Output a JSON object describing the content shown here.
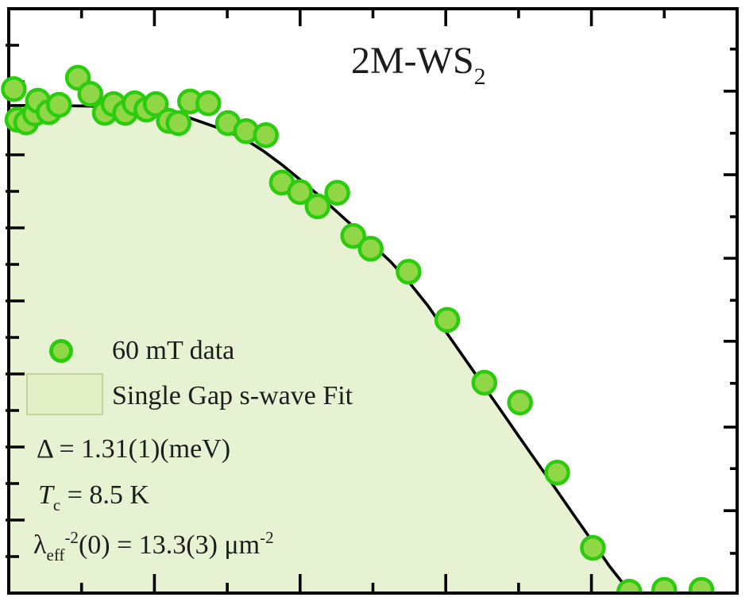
{
  "title": {
    "main": "2M-WS",
    "subscript": "2"
  },
  "legend": {
    "items": [
      {
        "label": "60 mT data",
        "marker": "circle-marker"
      },
      {
        "label": "Single Gap s-wave Fit",
        "marker": "area-swatch"
      }
    ]
  },
  "annotations": {
    "gap": {
      "text": "Δ = 1.31(1)(meV)"
    },
    "tc": {
      "symbol": "T",
      "subscript": "c",
      "rest": " = 8.5 K"
    },
    "lambda": {
      "symbol": "λ",
      "subscript": "eff",
      "superscript": "-2",
      "middle": "(0) = 13.3(3) μm",
      "superscript2": "-2"
    }
  },
  "colors": {
    "marker_fill": "#90d747",
    "marker_stroke": "#2bcb0e",
    "area_fill": "#e7f2d2",
    "swatch_fill": "#e3f0c6",
    "swatch_border": "#bed69c",
    "curve": "#000000",
    "frame": "#000000",
    "text": "#1c1c1c",
    "background": "#ffffff"
  },
  "chart_data": {
    "type": "scatter",
    "title": "2M-WS2",
    "xlabel": "",
    "ylabel": "",
    "xlim": [
      0,
      10
    ],
    "ylim": [
      0,
      16
    ],
    "grid": false,
    "legend_position": "middle-left",
    "series": [
      {
        "name": "60 mT data",
        "kind": "scatter",
        "marker_radius_px": 14,
        "points": [
          [
            0.07,
            13.8
          ],
          [
            0.12,
            12.96
          ],
          [
            0.24,
            12.89
          ],
          [
            0.36,
            13.13
          ],
          [
            0.4,
            13.48
          ],
          [
            0.55,
            13.17
          ],
          [
            0.69,
            13.37
          ],
          [
            0.95,
            14.11
          ],
          [
            1.12,
            13.67
          ],
          [
            1.32,
            13.15
          ],
          [
            1.44,
            13.39
          ],
          [
            1.6,
            13.15
          ],
          [
            1.73,
            13.41
          ],
          [
            1.89,
            13.24
          ],
          [
            2.02,
            13.39
          ],
          [
            2.2,
            12.93
          ],
          [
            2.33,
            12.87
          ],
          [
            2.49,
            13.46
          ],
          [
            2.74,
            13.41
          ],
          [
            3.01,
            12.87
          ],
          [
            3.26,
            12.65
          ],
          [
            3.53,
            12.54
          ],
          [
            3.75,
            11.24
          ],
          [
            4.0,
            10.98
          ],
          [
            4.24,
            10.59
          ],
          [
            4.51,
            10.96
          ],
          [
            4.73,
            9.78
          ],
          [
            4.97,
            9.43
          ],
          [
            5.49,
            8.8
          ],
          [
            6.02,
            7.48
          ],
          [
            6.53,
            5.76
          ],
          [
            7.02,
            5.22
          ],
          [
            7.53,
            3.3
          ],
          [
            8.02,
            1.24
          ],
          [
            8.52,
            0.04
          ],
          [
            9.0,
            0.09
          ],
          [
            9.51,
            0.09
          ]
        ]
      },
      {
        "name": "Single Gap s-wave Fit",
        "kind": "line+area",
        "fit_parameters": {
          "delta_meV": "1.31(1)",
          "Tc_K": "8.5",
          "lambda_eff_inv2_um2": "13.3(3)"
        },
        "points": [
          [
            0,
            13.35
          ],
          [
            0.5,
            13.35
          ],
          [
            1.0,
            13.34
          ],
          [
            1.5,
            13.32
          ],
          [
            2.0,
            13.22
          ],
          [
            2.5,
            13.0
          ],
          [
            3.0,
            12.65
          ],
          [
            3.25,
            12.42
          ],
          [
            3.5,
            12.1
          ],
          [
            3.75,
            11.73
          ],
          [
            4.0,
            11.32
          ],
          [
            4.25,
            10.9
          ],
          [
            4.5,
            10.45
          ],
          [
            4.75,
            10.0
          ],
          [
            5.0,
            9.53
          ],
          [
            5.25,
            9.06
          ],
          [
            5.5,
            8.5
          ],
          [
            5.75,
            7.88
          ],
          [
            6.0,
            7.16
          ],
          [
            6.25,
            6.45
          ],
          [
            6.5,
            5.73
          ],
          [
            6.75,
            5.02
          ],
          [
            7.0,
            4.3
          ],
          [
            7.25,
            3.59
          ],
          [
            7.5,
            2.88
          ],
          [
            7.75,
            2.16
          ],
          [
            8.0,
            1.45
          ],
          [
            8.25,
            0.73
          ],
          [
            8.54,
            0
          ]
        ]
      }
    ],
    "axes": {
      "ticks_direction": "in",
      "x": {
        "minor": [
          1,
          3,
          5,
          7,
          9
        ],
        "major": [
          2,
          4,
          6,
          8
        ],
        "mirror_top": true
      },
      "y_left": {
        "minor": [
          1,
          3,
          5,
          7,
          9,
          11,
          13,
          15
        ],
        "major": [
          2,
          4,
          6,
          8,
          10,
          12,
          14
        ]
      },
      "y_right_fraction": {
        "minor": [
          0.068,
          0.213,
          0.359,
          0.501,
          0.644,
          0.787,
          0.931
        ],
        "major": [
          0.141,
          0.284,
          0.431,
          0.573,
          0.716,
          0.859
        ]
      }
    }
  }
}
